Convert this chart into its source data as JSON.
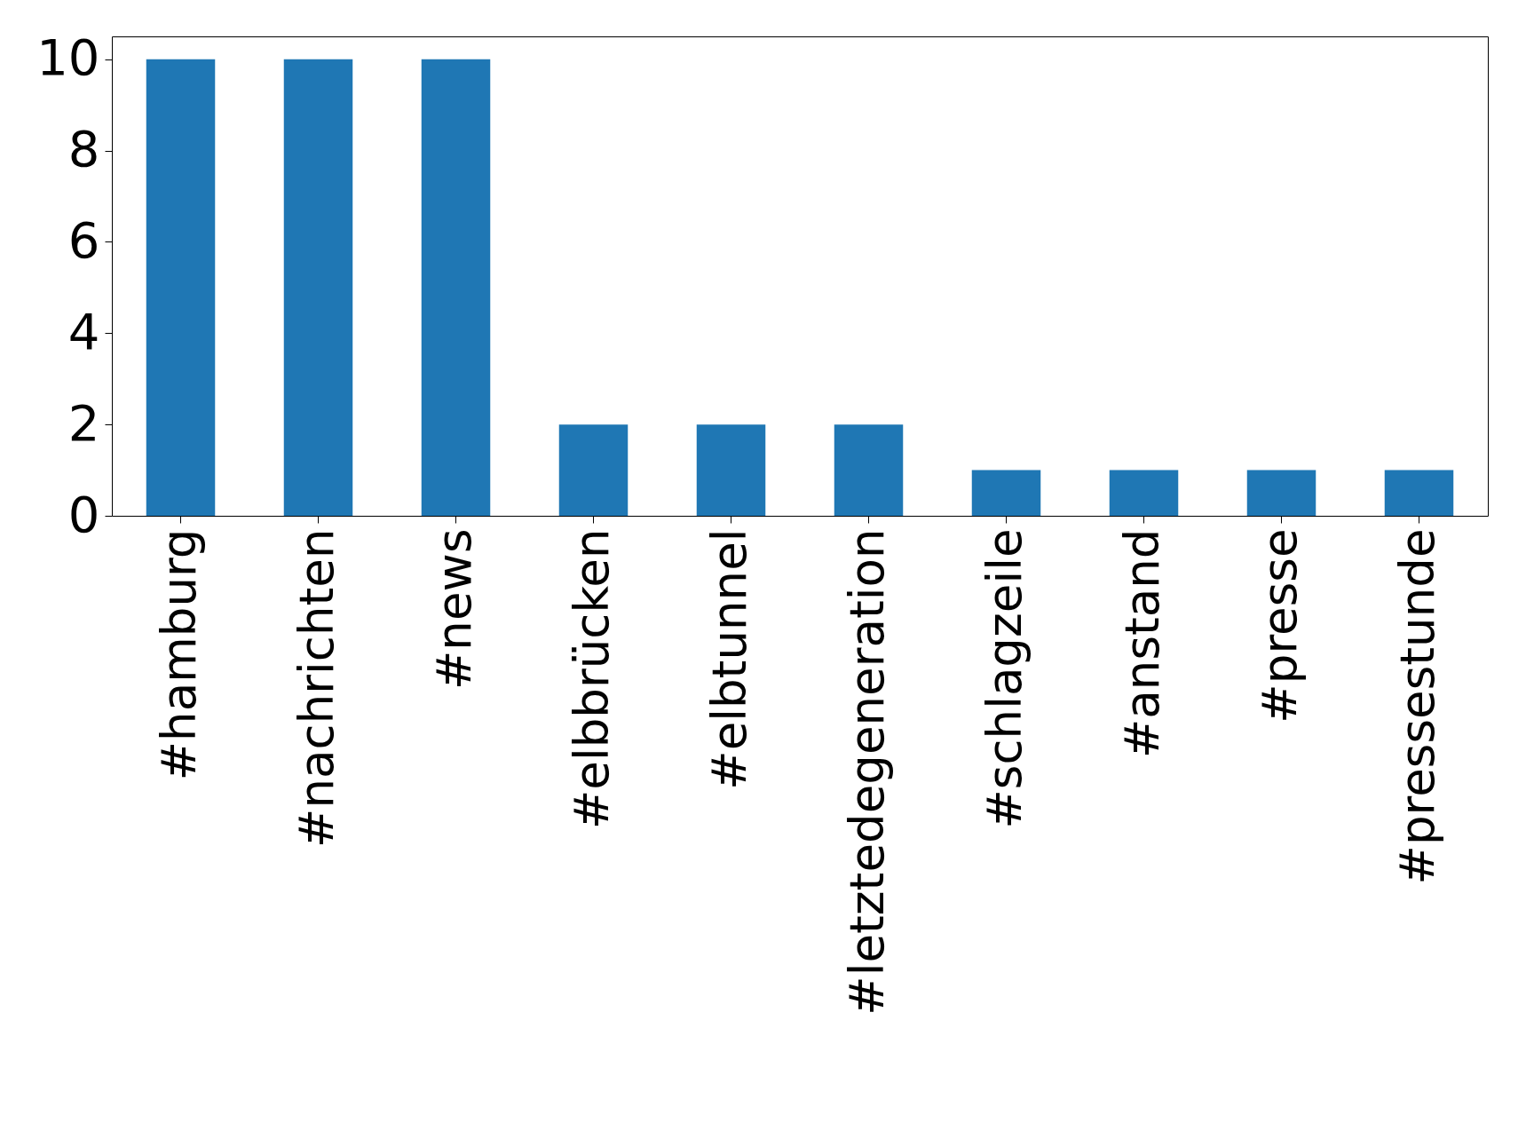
{
  "chart_data": {
    "type": "bar",
    "categories": [
      "#hamburg",
      "#nachrichten",
      "#news",
      "#elbbrücken",
      "#elbtunnel",
      "#letztedegeneration",
      "#schlagzeile",
      "#anstand",
      "#presse",
      "#pressestunde"
    ],
    "values": [
      10,
      10,
      10,
      2,
      2,
      2,
      1,
      1,
      1,
      1
    ],
    "color": "#1f77b4",
    "ylim": [
      0,
      10.5
    ],
    "yticks": [
      0,
      2,
      4,
      6,
      8,
      10
    ],
    "grid": false
  }
}
